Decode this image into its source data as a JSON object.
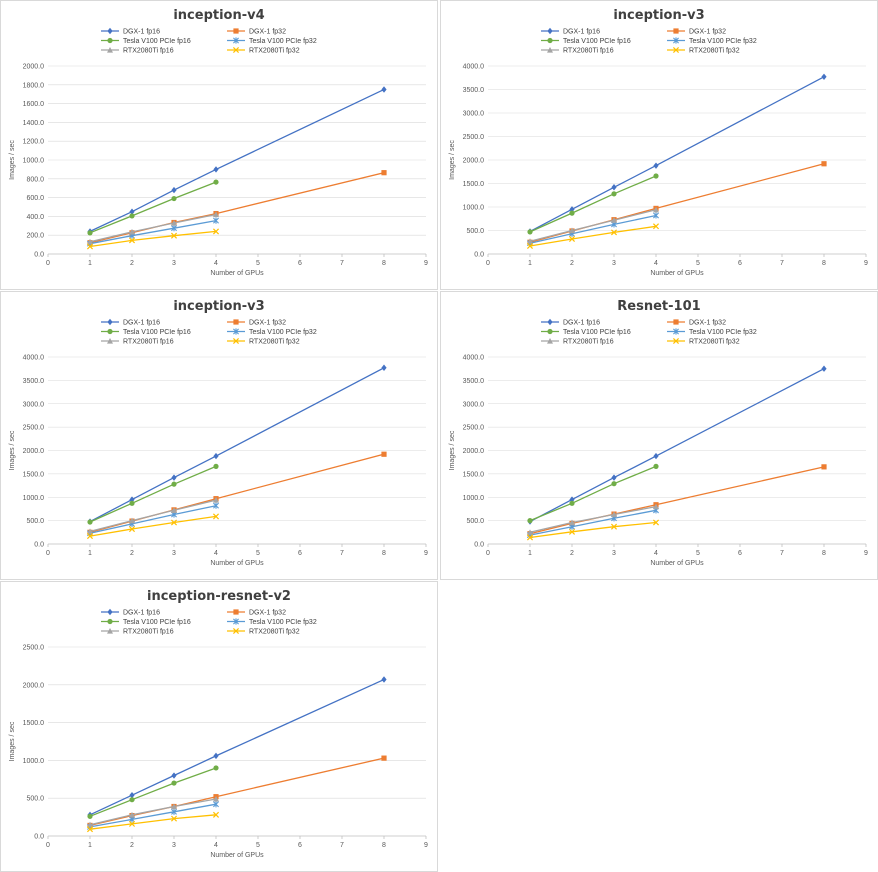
{
  "chart_data": [
    {
      "type": "line",
      "title": "inception-v4",
      "xlabel": "Number of GPUs",
      "ylabel": "Images / sec",
      "xlim": [
        0,
        9
      ],
      "ylim": [
        0,
        2000
      ],
      "xticks": [
        "0",
        "1",
        "2",
        "3",
        "4",
        "5",
        "6",
        "7",
        "8",
        "9"
      ],
      "yticks": [
        "0.0",
        "200.0",
        "400.0",
        "600.0",
        "800.0",
        "1000.0",
        "1200.0",
        "1400.0",
        "1600.0",
        "1800.0",
        "2000.0"
      ],
      "grid": true,
      "legend": "top",
      "series": [
        {
          "name": "DGX-1 fp16",
          "color": "#4472c4",
          "marker": "diamond",
          "x": [
            1,
            2,
            3,
            4,
            8
          ],
          "y": [
            240,
            450,
            680,
            900,
            1750
          ]
        },
        {
          "name": "DGX-1 fp32",
          "color": "#ed7d31",
          "marker": "square",
          "x": [
            1,
            2,
            3,
            4,
            8
          ],
          "y": [
            120,
            225,
            335,
            430,
            865
          ]
        },
        {
          "name": "Tesla V100 PCIe fp16",
          "color": "#70ad47",
          "marker": "circle",
          "x": [
            1,
            2,
            3,
            4
          ],
          "y": [
            225,
            405,
            590,
            765
          ]
        },
        {
          "name": "Tesla V100 PCIe fp32",
          "color": "#5b9bd5",
          "marker": "star",
          "x": [
            1,
            2,
            3,
            4
          ],
          "y": [
            110,
            195,
            275,
            355
          ]
        },
        {
          "name": "RTX2080Ti fp16",
          "color": "#a5a5a5",
          "marker": "triangle",
          "x": [
            1,
            2,
            3,
            4
          ],
          "y": [
            130,
            235,
            330,
            420
          ]
        },
        {
          "name": "RTX2080Ti fp32",
          "color": "#ffc000",
          "marker": "x",
          "x": [
            1,
            2,
            3,
            4
          ],
          "y": [
            80,
            145,
            195,
            240
          ]
        }
      ]
    },
    {
      "type": "line",
      "title": "inception-v3",
      "xlabel": "Number of GPUs",
      "ylabel": "Images / sec",
      "xlim": [
        0,
        9
      ],
      "ylim": [
        0,
        4000
      ],
      "xticks": [
        "0",
        "1",
        "2",
        "3",
        "4",
        "5",
        "6",
        "7",
        "8",
        "9"
      ],
      "yticks": [
        "0.0",
        "500.0",
        "1000.0",
        "1500.0",
        "2000.0",
        "2500.0",
        "3000.0",
        "3500.0",
        "4000.0"
      ],
      "grid": true,
      "legend": "top",
      "series": [
        {
          "name": "DGX-1 fp16",
          "color": "#4472c4",
          "marker": "diamond",
          "x": [
            1,
            2,
            3,
            4,
            8
          ],
          "y": [
            480,
            950,
            1420,
            1880,
            3770
          ]
        },
        {
          "name": "DGX-1 fp32",
          "color": "#ed7d31",
          "marker": "square",
          "x": [
            1,
            2,
            3,
            4,
            8
          ],
          "y": [
            250,
            490,
            730,
            970,
            1920
          ]
        },
        {
          "name": "Tesla V100 PCIe fp16",
          "color": "#70ad47",
          "marker": "circle",
          "x": [
            1,
            2,
            3,
            4
          ],
          "y": [
            470,
            870,
            1280,
            1660
          ]
        },
        {
          "name": "Tesla V100 PCIe fp32",
          "color": "#5b9bd5",
          "marker": "star",
          "x": [
            1,
            2,
            3,
            4
          ],
          "y": [
            230,
            430,
            630,
            820
          ]
        },
        {
          "name": "RTX2080Ti fp16",
          "color": "#a5a5a5",
          "marker": "triangle",
          "x": [
            1,
            2,
            3,
            4
          ],
          "y": [
            270,
            500,
            720,
            940
          ]
        },
        {
          "name": "RTX2080Ti fp32",
          "color": "#ffc000",
          "marker": "x",
          "x": [
            1,
            2,
            3,
            4
          ],
          "y": [
            170,
            320,
            460,
            590
          ]
        }
      ]
    },
    {
      "type": "line",
      "title": "inception-v3",
      "xlabel": "Number of GPUs",
      "ylabel": "Images / sec",
      "xlim": [
        0,
        9
      ],
      "ylim": [
        0,
        4000
      ],
      "xticks": [
        "0",
        "1",
        "2",
        "3",
        "4",
        "5",
        "6",
        "7",
        "8",
        "9"
      ],
      "yticks": [
        "0.0",
        "500.0",
        "1000.0",
        "1500.0",
        "2000.0",
        "2500.0",
        "3000.0",
        "3500.0",
        "4000.0"
      ],
      "grid": true,
      "legend": "top",
      "series": [
        {
          "name": "DGX-1 fp16",
          "color": "#4472c4",
          "marker": "diamond",
          "x": [
            1,
            2,
            3,
            4,
            8
          ],
          "y": [
            480,
            950,
            1420,
            1880,
            3770
          ]
        },
        {
          "name": "DGX-1 fp32",
          "color": "#ed7d31",
          "marker": "square",
          "x": [
            1,
            2,
            3,
            4,
            8
          ],
          "y": [
            250,
            490,
            730,
            970,
            1920
          ]
        },
        {
          "name": "Tesla V100 PCIe fp16",
          "color": "#70ad47",
          "marker": "circle",
          "x": [
            1,
            2,
            3,
            4
          ],
          "y": [
            470,
            870,
            1280,
            1660
          ]
        },
        {
          "name": "Tesla V100 PCIe fp32",
          "color": "#5b9bd5",
          "marker": "star",
          "x": [
            1,
            2,
            3,
            4
          ],
          "y": [
            230,
            430,
            630,
            820
          ]
        },
        {
          "name": "RTX2080Ti fp16",
          "color": "#a5a5a5",
          "marker": "triangle",
          "x": [
            1,
            2,
            3,
            4
          ],
          "y": [
            270,
            500,
            720,
            940
          ]
        },
        {
          "name": "RTX2080Ti fp32",
          "color": "#ffc000",
          "marker": "x",
          "x": [
            1,
            2,
            3,
            4
          ],
          "y": [
            170,
            320,
            460,
            590
          ]
        }
      ]
    },
    {
      "type": "line",
      "title": "Resnet-101",
      "xlabel": "Number of GPUs",
      "ylabel": "Images / sec",
      "xlim": [
        0,
        9
      ],
      "ylim": [
        0,
        4000
      ],
      "xticks": [
        "0",
        "1",
        "2",
        "3",
        "4",
        "5",
        "6",
        "7",
        "8",
        "9"
      ],
      "yticks": [
        "0.0",
        "500.0",
        "1000.0",
        "1500.0",
        "2000.0",
        "2500.0",
        "3000.0",
        "3500.0",
        "4000.0"
      ],
      "grid": true,
      "legend": "top",
      "series": [
        {
          "name": "DGX-1 fp16",
          "color": "#4472c4",
          "marker": "diamond",
          "x": [
            1,
            2,
            3,
            4,
            8
          ],
          "y": [
            480,
            950,
            1420,
            1880,
            3750
          ]
        },
        {
          "name": "DGX-1 fp32",
          "color": "#ed7d31",
          "marker": "square",
          "x": [
            1,
            2,
            3,
            4,
            8
          ],
          "y": [
            220,
            440,
            640,
            840,
            1650
          ]
        },
        {
          "name": "Tesla V100 PCIe fp16",
          "color": "#70ad47",
          "marker": "circle",
          "x": [
            1,
            2,
            3,
            4
          ],
          "y": [
            500,
            870,
            1290,
            1660
          ]
        },
        {
          "name": "Tesla V100 PCIe fp32",
          "color": "#5b9bd5",
          "marker": "star",
          "x": [
            1,
            2,
            3,
            4
          ],
          "y": [
            190,
            370,
            550,
            720
          ]
        },
        {
          "name": "RTX2080Ti fp16",
          "color": "#a5a5a5",
          "marker": "triangle",
          "x": [
            1,
            2,
            3,
            4
          ],
          "y": [
            250,
            460,
            630,
            800
          ]
        },
        {
          "name": "RTX2080Ti fp32",
          "color": "#ffc000",
          "marker": "x",
          "x": [
            1,
            2,
            3,
            4
          ],
          "y": [
            140,
            260,
            370,
            460
          ]
        }
      ]
    },
    {
      "type": "line",
      "title": "inception-resnet-v2",
      "xlabel": "Number of GPUs",
      "ylabel": "Images / sec",
      "xlim": [
        0,
        9
      ],
      "ylim": [
        0,
        2500
      ],
      "xticks": [
        "0",
        "1",
        "2",
        "3",
        "4",
        "5",
        "6",
        "7",
        "8",
        "9"
      ],
      "yticks": [
        "0.0",
        "500.0",
        "1000.0",
        "1500.0",
        "2000.0",
        "2500.0"
      ],
      "grid": true,
      "legend": "top",
      "series": [
        {
          "name": "DGX-1 fp16",
          "color": "#4472c4",
          "marker": "diamond",
          "x": [
            1,
            2,
            3,
            4,
            8
          ],
          "y": [
            280,
            540,
            800,
            1060,
            2070
          ]
        },
        {
          "name": "DGX-1 fp32",
          "color": "#ed7d31",
          "marker": "square",
          "x": [
            1,
            2,
            3,
            4,
            8
          ],
          "y": [
            140,
            270,
            390,
            520,
            1030
          ]
        },
        {
          "name": "Tesla V100 PCIe fp16",
          "color": "#70ad47",
          "marker": "circle",
          "x": [
            1,
            2,
            3,
            4
          ],
          "y": [
            260,
            480,
            700,
            900
          ]
        },
        {
          "name": "Tesla V100 PCIe fp32",
          "color": "#5b9bd5",
          "marker": "star",
          "x": [
            1,
            2,
            3,
            4
          ],
          "y": [
            120,
            220,
            320,
            420
          ]
        },
        {
          "name": "RTX2080Ti fp16",
          "color": "#a5a5a5",
          "marker": "triangle",
          "x": [
            1,
            2,
            3,
            4
          ],
          "y": [
            150,
            280,
            390,
            490
          ]
        },
        {
          "name": "RTX2080Ti fp32",
          "color": "#ffc000",
          "marker": "x",
          "x": [
            1,
            2,
            3,
            4
          ],
          "y": [
            90,
            160,
            230,
            280
          ]
        }
      ]
    }
  ]
}
